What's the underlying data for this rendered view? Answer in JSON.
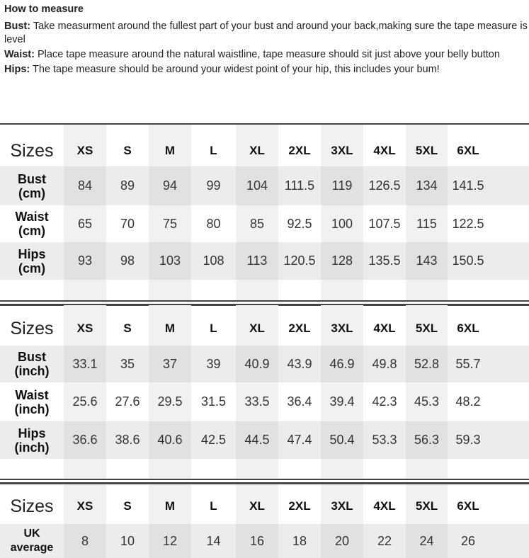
{
  "intro": {
    "title": "How to measure",
    "items": [
      {
        "term": "Bust:",
        "text": " Take measurment around the fullest part of your bust and around your back,making sure the tape measure is level"
      },
      {
        "term": "Waist:",
        "text": " Place tape measure around the natural waistline, tape measure should sit just above your belly button"
      },
      {
        "term": "Hips:",
        "text": " The tape measure should be around your widest point of your hip, this includes your bum!"
      }
    ]
  },
  "sizes_label": "Sizes",
  "sizes": [
    "XS",
    "S",
    "M",
    "L",
    "XL",
    "2XL",
    "3XL",
    "4XL",
    "5XL",
    "6XL"
  ],
  "tables": [
    {
      "rows": [
        {
          "label1": "Bust",
          "label2": "(cm)",
          "values": [
            "84",
            "89",
            "94",
            "99",
            "104",
            "111.5",
            "119",
            "126.5",
            "134",
            "141.5"
          ]
        },
        {
          "label1": "Waist",
          "label2": "(cm)",
          "values": [
            "65",
            "70",
            "75",
            "80",
            "85",
            "92.5",
            "100",
            "107.5",
            "115",
            "122.5"
          ]
        },
        {
          "label1": "Hips",
          "label2": "(cm)",
          "values": [
            "93",
            "98",
            "103",
            "108",
            "113",
            "120.5",
            "128",
            "135.5",
            "143",
            "150.5"
          ]
        }
      ]
    },
    {
      "rows": [
        {
          "label1": "Bust",
          "label2": "(inch)",
          "values": [
            "33.1",
            "35",
            "37",
            "39",
            "40.9",
            "43.9",
            "46.9",
            "49.8",
            "52.8",
            "55.7"
          ]
        },
        {
          "label1": "Waist",
          "label2": "(inch)",
          "values": [
            "25.6",
            "27.6",
            "29.5",
            "31.5",
            "33.5",
            "36.4",
            "39.4",
            "42.3",
            "45.3",
            "48.2"
          ]
        },
        {
          "label1": "Hips",
          "label2": "(inch)",
          "values": [
            "36.6",
            "38.6",
            "40.6",
            "42.5",
            "44.5",
            "47.4",
            "50.4",
            "53.3",
            "56.3",
            "59.3"
          ]
        }
      ]
    },
    {
      "rows": [
        {
          "label1": "UK",
          "label2": "average",
          "values": [
            "8",
            "10",
            "12",
            "14",
            "16",
            "18",
            "20",
            "22",
            "24",
            "26"
          ]
        }
      ]
    }
  ]
}
